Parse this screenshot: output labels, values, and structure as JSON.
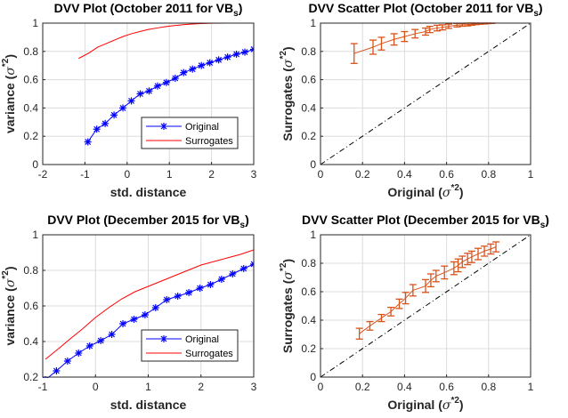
{
  "chart_data": [
    {
      "id": "dvv-oct",
      "type": "line",
      "title": "DVV Plot (October 2011 for VB",
      "title_subscript": "s",
      "xlabel": "std. distance",
      "ylabel": "variance (σ*2)",
      "ylabel_parts": {
        "main": "variance (",
        "sigma": "σ",
        "sup": "*2",
        "close": ")"
      },
      "xlim": [
        -2,
        3
      ],
      "ylim": [
        0,
        1
      ],
      "xticks": [
        -2,
        -1,
        0,
        1,
        2,
        3
      ],
      "yticks": [
        0,
        0.2,
        0.4,
        0.6,
        0.8,
        1
      ],
      "ytick_labels": [
        "0",
        "0.2",
        "0.4",
        "0.6",
        "0.8",
        "1"
      ],
      "grid": true,
      "legend": {
        "placement": "lower-right",
        "entries": [
          "Original",
          "Surrogates"
        ]
      },
      "series": [
        {
          "name": "Original",
          "color": "#0000ff",
          "marker": "asterisk",
          "x": [
            -0.93,
            -0.72,
            -0.52,
            -0.31,
            -0.1,
            0.1,
            0.31,
            0.52,
            0.72,
            0.93,
            1.14,
            1.34,
            1.55,
            1.76,
            1.96,
            2.17,
            2.38,
            2.59,
            2.79,
            3.0
          ],
          "y": [
            0.16,
            0.25,
            0.29,
            0.35,
            0.4,
            0.45,
            0.5,
            0.52,
            0.555,
            0.58,
            0.61,
            0.65,
            0.675,
            0.7,
            0.72,
            0.74,
            0.76,
            0.78,
            0.795,
            0.815
          ]
        },
        {
          "name": "Surrogates",
          "color": "#ff0000",
          "marker": "none",
          "x": [
            -1.15,
            -0.9,
            -0.7,
            -0.5,
            -0.3,
            -0.1,
            0.1,
            0.3,
            0.5,
            0.7,
            0.9,
            1.1,
            1.3,
            1.5,
            1.7,
            2.0,
            2.5,
            3.0
          ],
          "y": [
            0.75,
            0.79,
            0.83,
            0.855,
            0.88,
            0.905,
            0.925,
            0.94,
            0.955,
            0.965,
            0.975,
            0.982,
            0.988,
            0.993,
            0.996,
            0.999,
            1.0,
            1.0
          ]
        }
      ]
    },
    {
      "id": "scatter-oct",
      "type": "scatter",
      "title": "DVV Scatter Plot (October 2011 for VB",
      "title_subscript": "s",
      "xlabel": "Original (σ*2)",
      "xlabel_parts": {
        "main": "Original (",
        "sigma": "σ",
        "sup": "*2",
        "close": ")"
      },
      "ylabel": "Surrogates (σ*2)",
      "ylabel_parts": {
        "main": "Surrogates (",
        "sigma": "σ",
        "sup": "*2",
        "close": ")"
      },
      "xlim": [
        0,
        1
      ],
      "ylim": [
        0,
        1
      ],
      "xticks": [
        0,
        0.2,
        0.4,
        0.6,
        0.8,
        1
      ],
      "xtick_labels": [
        "0",
        "0.2",
        "0.4",
        "0.6",
        "0.8",
        "1"
      ],
      "yticks": [
        0,
        0.2,
        0.4,
        0.6,
        0.8,
        1
      ],
      "ytick_labels": [
        "0",
        "0.2",
        "0.4",
        "0.6",
        "0.8",
        "1"
      ],
      "grid": true,
      "reference_line": {
        "style": "dash-dot",
        "color": "#000000",
        "from": [
          0,
          0
        ],
        "to": [
          1,
          1
        ]
      },
      "series": [
        {
          "name": "Surrogates vs Original",
          "color": "#d95319",
          "x": [
            0.16,
            0.25,
            0.29,
            0.35,
            0.4,
            0.45,
            0.5,
            0.52,
            0.555,
            0.58,
            0.61,
            0.65,
            0.675,
            0.7,
            0.72,
            0.74,
            0.76,
            0.78,
            0.795,
            0.815
          ],
          "y": [
            0.785,
            0.83,
            0.855,
            0.885,
            0.905,
            0.925,
            0.94,
            0.955,
            0.965,
            0.97,
            0.978,
            0.985,
            0.988,
            0.99,
            0.993,
            0.995,
            0.997,
            0.998,
            0.999,
            1.0
          ],
          "err": [
            0.07,
            0.05,
            0.045,
            0.04,
            0.035,
            0.03,
            0.025,
            0.022,
            0.02,
            0.018,
            0.015,
            0.012,
            0.01,
            0.01,
            0.008,
            0.006,
            0.005,
            0.004,
            0.003,
            0.002
          ]
        }
      ]
    },
    {
      "id": "dvv-dec",
      "type": "line",
      "title": "DVV Plot (December 2015 for VB",
      "title_subscript": "s",
      "xlabel": "std. distance",
      "ylabel": "variance (σ*2)",
      "ylabel_parts": {
        "main": "variance (",
        "sigma": "σ",
        "sup": "*2",
        "close": ")"
      },
      "xlim": [
        -1,
        3
      ],
      "ylim": [
        0.2,
        1
      ],
      "xticks": [
        -1,
        0,
        1,
        2,
        3
      ],
      "yticks": [
        0.2,
        0.4,
        0.6,
        0.8,
        1
      ],
      "ytick_labels": [
        "0.2",
        "0.4",
        "0.6",
        "0.8",
        "1"
      ],
      "grid": true,
      "legend": {
        "placement": "lower-right",
        "entries": [
          "Original",
          "Surrogates"
        ]
      },
      "series": [
        {
          "name": "Original",
          "color": "#0000ff",
          "marker": "asterisk",
          "x": [
            -0.95,
            -0.74,
            -0.53,
            -0.32,
            -0.11,
            0.1,
            0.31,
            0.52,
            0.73,
            0.94,
            1.14,
            1.35,
            1.56,
            1.77,
            1.98,
            2.18,
            2.39,
            2.6,
            2.81,
            3.0
          ],
          "y": [
            0.185,
            0.235,
            0.29,
            0.335,
            0.375,
            0.405,
            0.44,
            0.5,
            0.525,
            0.55,
            0.59,
            0.635,
            0.655,
            0.675,
            0.7,
            0.72,
            0.75,
            0.78,
            0.81,
            0.835
          ]
        },
        {
          "name": "Surrogates",
          "color": "#ff0000",
          "marker": "none",
          "x": [
            -0.95,
            -0.7,
            -0.5,
            -0.25,
            0.0,
            0.25,
            0.5,
            0.75,
            1.0,
            1.25,
            1.5,
            1.75,
            2.0,
            2.25,
            2.5,
            2.75,
            3.0
          ],
          "y": [
            0.3,
            0.36,
            0.41,
            0.47,
            0.535,
            0.59,
            0.64,
            0.68,
            0.71,
            0.74,
            0.77,
            0.8,
            0.83,
            0.85,
            0.87,
            0.89,
            0.915
          ]
        }
      ]
    },
    {
      "id": "scatter-dec",
      "type": "scatter",
      "title": "DVV Scatter Plot (December 2015 for VB",
      "title_subscript": "s",
      "xlabel": "Original (σ*2)",
      "xlabel_parts": {
        "main": "Original (",
        "sigma": "σ",
        "sup": "*2",
        "close": ")"
      },
      "ylabel": "Surrogates (σ*2)",
      "ylabel_parts": {
        "main": "Surrogates (",
        "sigma": "σ",
        "sup": "*2",
        "close": ")"
      },
      "xlim": [
        0,
        1
      ],
      "ylim": [
        0,
        1
      ],
      "xticks": [
        0,
        0.2,
        0.4,
        0.6,
        0.8,
        1
      ],
      "xtick_labels": [
        "0",
        "0.2",
        "0.4",
        "0.6",
        "0.8",
        "1"
      ],
      "yticks": [
        0,
        0.2,
        0.4,
        0.6,
        0.8,
        1
      ],
      "ytick_labels": [
        "0",
        "0.2",
        "0.4",
        "0.6",
        "0.8",
        "1"
      ],
      "grid": true,
      "reference_line": {
        "style": "dash-dot",
        "color": "#000000",
        "from": [
          0,
          0
        ],
        "to": [
          1,
          1
        ]
      },
      "series": [
        {
          "name": "Surrogates vs Original",
          "color": "#d95319",
          "x": [
            0.185,
            0.235,
            0.29,
            0.335,
            0.375,
            0.405,
            0.44,
            0.5,
            0.525,
            0.55,
            0.59,
            0.635,
            0.655,
            0.675,
            0.7,
            0.72,
            0.75,
            0.78,
            0.81,
            0.835
          ],
          "y": [
            0.305,
            0.36,
            0.415,
            0.46,
            0.515,
            0.555,
            0.61,
            0.64,
            0.68,
            0.71,
            0.735,
            0.765,
            0.785,
            0.81,
            0.83,
            0.845,
            0.865,
            0.885,
            0.9,
            0.915
          ],
          "err": [
            0.038,
            0.03,
            0.025,
            0.03,
            0.033,
            0.04,
            0.04,
            0.045,
            0.045,
            0.04,
            0.045,
            0.045,
            0.045,
            0.04,
            0.04,
            0.04,
            0.04,
            0.035,
            0.035,
            0.035
          ]
        }
      ]
    }
  ]
}
